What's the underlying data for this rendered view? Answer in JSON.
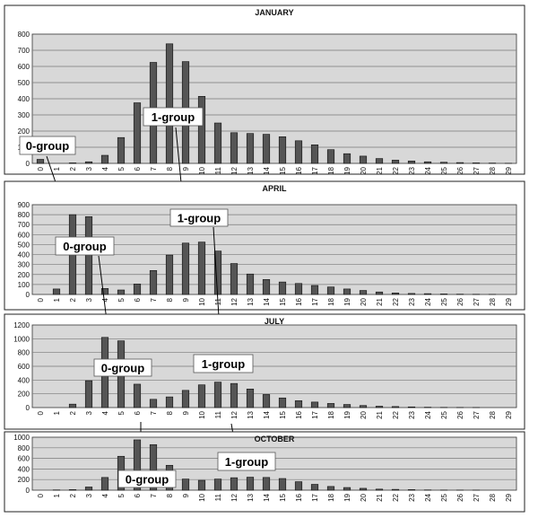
{
  "chart_data": [
    {
      "type": "bar",
      "title": "JANUARY",
      "ylim": [
        0,
        800
      ],
      "yticks": [
        "0",
        "100",
        "200",
        "300",
        "400",
        "500",
        "600",
        "700",
        "800"
      ],
      "categories": [
        "0",
        "1",
        "2",
        "3",
        "4",
        "5",
        "6",
        "7",
        "8",
        "9",
        "10",
        "11",
        "12",
        "13",
        "14",
        "15",
        "16",
        "17",
        "18",
        "19",
        "20",
        "21",
        "22",
        "23",
        "24",
        "25",
        "26",
        "27",
        "28",
        "29"
      ],
      "values": [
        25,
        0,
        3,
        10,
        50,
        160,
        375,
        625,
        740,
        630,
        415,
        250,
        190,
        185,
        180,
        165,
        140,
        115,
        85,
        60,
        45,
        30,
        20,
        15,
        10,
        7,
        5,
        3,
        2,
        1
      ],
      "grid": true,
      "annotations": [
        "0-group",
        "1-group"
      ]
    },
    {
      "type": "bar",
      "title": "APRIL",
      "ylim": [
        0,
        900
      ],
      "yticks": [
        "0",
        "100",
        "200",
        "300",
        "400",
        "500",
        "600",
        "700",
        "800",
        "900"
      ],
      "categories": [
        "0",
        "1",
        "2",
        "3",
        "4",
        "5",
        "6",
        "7",
        "8",
        "9",
        "10",
        "11",
        "12",
        "13",
        "14",
        "15",
        "16",
        "17",
        "18",
        "19",
        "20",
        "21",
        "22",
        "23",
        "24",
        "25",
        "26",
        "27",
        "28",
        "29"
      ],
      "values": [
        0,
        55,
        800,
        780,
        60,
        45,
        105,
        240,
        395,
        515,
        525,
        435,
        310,
        205,
        150,
        125,
        110,
        90,
        75,
        55,
        40,
        25,
        15,
        10,
        8,
        5,
        3,
        2,
        1,
        0
      ],
      "grid": true,
      "annotations": [
        "0-group",
        "1-group"
      ]
    },
    {
      "type": "bar",
      "title": "JULY",
      "ylim": [
        0,
        1200
      ],
      "yticks": [
        "0",
        "200",
        "400",
        "600",
        "800",
        "1000",
        "1200"
      ],
      "categories": [
        "0",
        "1",
        "2",
        "3",
        "4",
        "5",
        "6",
        "7",
        "8",
        "9",
        "10",
        "11",
        "12",
        "13",
        "14",
        "15",
        "16",
        "17",
        "18",
        "19",
        "20",
        "21",
        "22",
        "23",
        "24",
        "25",
        "26",
        "27",
        "28",
        "29"
      ],
      "values": [
        0,
        0,
        50,
        390,
        1020,
        970,
        340,
        120,
        155,
        250,
        330,
        370,
        350,
        270,
        190,
        140,
        100,
        80,
        60,
        45,
        30,
        20,
        15,
        10,
        5,
        3,
        2,
        1,
        0,
        0
      ],
      "grid": true,
      "annotations": [
        "0-group",
        "1-group"
      ]
    },
    {
      "type": "bar",
      "title": "OCTOBER",
      "ylim": [
        0,
        1000
      ],
      "yticks": [
        "0",
        "200",
        "400",
        "600",
        "800",
        "1000"
      ],
      "categories": [
        "0",
        "1",
        "2",
        "3",
        "4",
        "5",
        "6",
        "7",
        "8",
        "9",
        "10",
        "11",
        "12",
        "13",
        "14",
        "15",
        "16",
        "17",
        "18",
        "19",
        "20",
        "21",
        "22",
        "23",
        "24",
        "25",
        "26",
        "27",
        "28",
        "29"
      ],
      "values": [
        0,
        5,
        10,
        60,
        240,
        640,
        950,
        860,
        470,
        210,
        185,
        210,
        235,
        245,
        240,
        220,
        160,
        110,
        70,
        50,
        35,
        20,
        15,
        10,
        5,
        3,
        2,
        1,
        0,
        0
      ],
      "grid": true,
      "annotations": [
        "0-group",
        "1-group"
      ]
    }
  ],
  "colors": {
    "plot_bg": "#d8d8d8",
    "bar": "#555555",
    "grid": "#7a7a7a"
  }
}
